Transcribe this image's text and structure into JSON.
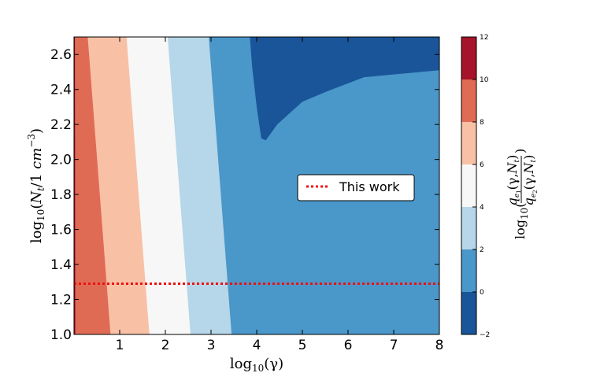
{
  "chart_data": {
    "type": "contourf",
    "xlabel": "log10(γ)",
    "ylabel": "log10(N_t/1 cm^-3)",
    "xlim": [
      0,
      8
    ],
    "ylim": [
      1.0,
      2.7
    ],
    "x_ticks": [
      "1",
      "2",
      "3",
      "4",
      "5",
      "6",
      "7",
      "8"
    ],
    "y_ticks": [
      "1.0",
      "1.2",
      "1.4",
      "1.6",
      "1.8",
      "2.0",
      "2.2",
      "2.4",
      "2.6"
    ],
    "colorbar": {
      "label": "log10(q_e1(γ,N_t) / q_e2(γ,N_t))",
      "ticks": [
        "−2",
        "0",
        "2",
        "4",
        "6",
        "8",
        "10",
        "12"
      ],
      "levels": [
        -2,
        0,
        2,
        4,
        6,
        8,
        10,
        12
      ],
      "colors": [
        "#1a5599",
        "#4a97c9",
        "#b6d6e9",
        "#f7f7f7",
        "#f8c1a6",
        "#e06b55",
        "#a5142a"
      ]
    },
    "level_boundaries": [
      {
        "level": 10,
        "x_at_y1.0": 0.03,
        "x_at_y2.7": 0.02
      },
      {
        "level": 8,
        "x_at_y1.0": 0.8,
        "x_at_y2.7": 0.3
      },
      {
        "level": 6,
        "x_at_y1.0": 1.65,
        "x_at_y2.7": 1.15
      },
      {
        "level": 4,
        "x_at_y1.0": 2.55,
        "x_at_y2.7": 2.05
      },
      {
        "level": 2,
        "x_at_y1.0": 3.45,
        "x_at_y2.7": 2.95
      }
    ],
    "region_below_0": [
      {
        "x": 3.85,
        "y": 2.7
      },
      {
        "x": 8.0,
        "y": 2.7
      },
      {
        "x": 8.0,
        "y": 2.51
      },
      {
        "x": 6.35,
        "y": 2.47
      },
      {
        "x": 5.55,
        "y": 2.39
      },
      {
        "x": 5.0,
        "y": 2.33
      },
      {
        "x": 4.45,
        "y": 2.2
      },
      {
        "x": 4.2,
        "y": 2.11
      },
      {
        "x": 4.1,
        "y": 2.12
      },
      {
        "x": 4.0,
        "y": 2.3
      },
      {
        "x": 3.9,
        "y": 2.53
      }
    ],
    "series": [
      {
        "name": "This work",
        "style": "dotted",
        "color": "#ee1111",
        "y": 1.29
      }
    ],
    "legend": {
      "entries": [
        "This work"
      ],
      "placement": "center-right"
    }
  }
}
